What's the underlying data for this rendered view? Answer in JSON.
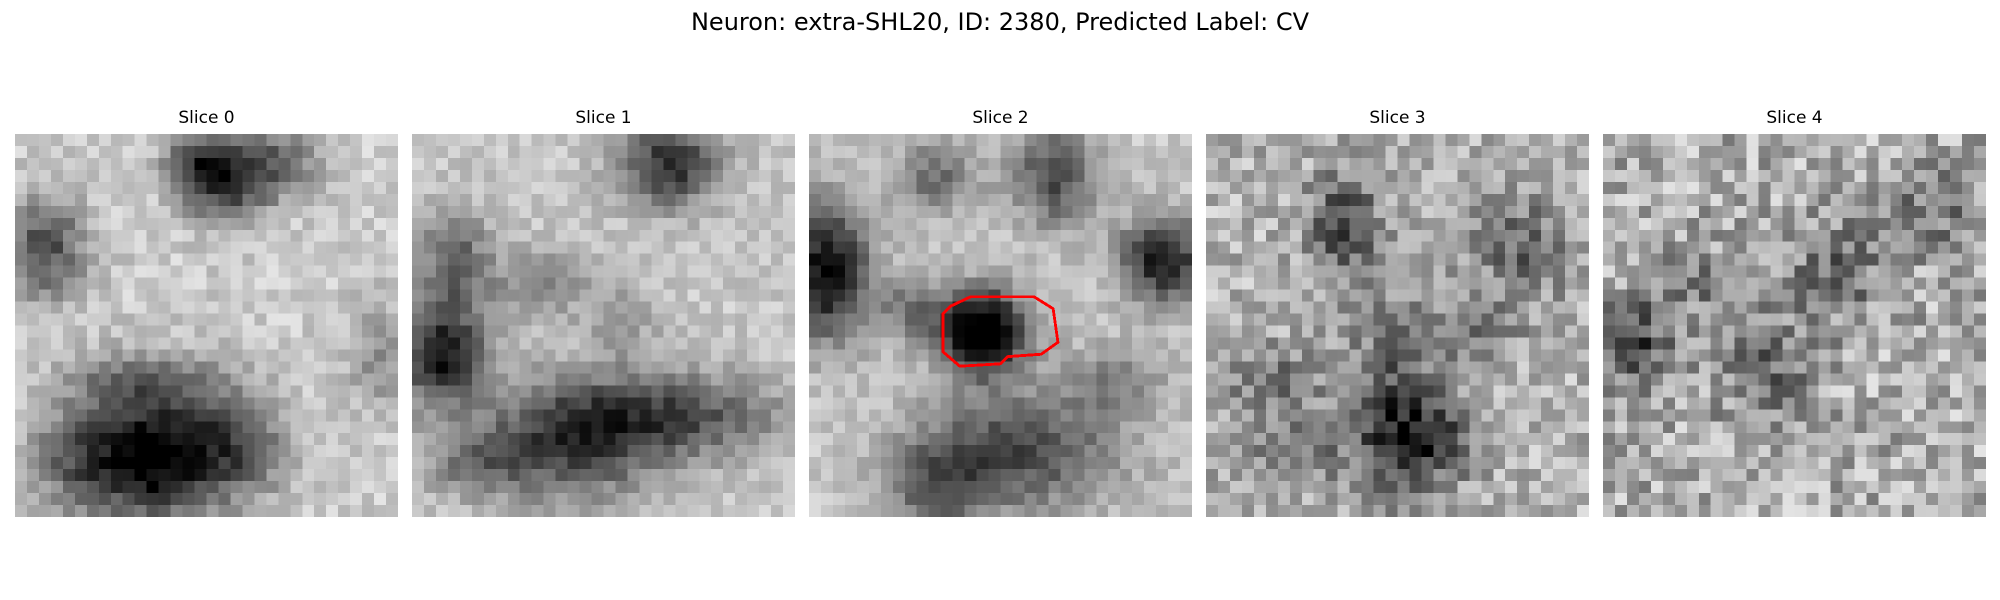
{
  "figure": {
    "title": "Neuron: extra-SHL20, ID: 2380, Predicted Label: CV"
  },
  "panels": [
    {
      "title": "Slice 0"
    },
    {
      "title": "Slice 1"
    },
    {
      "title": "Slice 2"
    },
    {
      "title": "Slice 3"
    },
    {
      "title": "Slice 4"
    }
  ],
  "overlay": {
    "slice_index": 2,
    "contour_color": "#ff0000"
  },
  "colormap": "gray"
}
